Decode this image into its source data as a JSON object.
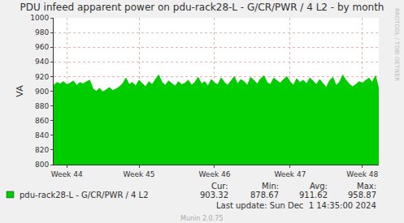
{
  "chart_data": {
    "type": "area",
    "title": "PDU infeed apparent power on pdu-rack28-L - G/CR/PWR / 4 L2 - by month",
    "y_label": "VA",
    "categories": [
      null,
      null,
      null,
      null,
      "Week 44",
      null,
      null,
      null,
      null,
      null,
      null,
      null,
      null,
      null,
      null,
      null,
      null,
      null,
      null,
      null,
      null,
      null,
      null,
      null,
      null,
      null,
      "Week 45",
      null,
      null,
      null,
      null,
      null,
      null,
      null,
      null,
      null,
      null,
      null,
      null,
      null,
      null,
      null,
      null,
      null,
      null,
      null,
      null,
      null,
      null,
      "Week 46",
      null,
      null,
      null,
      null,
      null,
      null,
      null,
      null,
      null,
      null,
      null,
      null,
      null,
      null,
      null,
      null,
      null,
      null,
      null,
      null,
      null,
      null,
      "Week 47",
      null,
      null,
      null,
      null,
      null,
      null,
      null,
      null,
      null,
      null,
      null,
      null,
      null,
      null,
      null,
      null,
      null,
      null,
      null,
      null,
      null,
      "Week 48",
      null,
      null,
      null,
      null,
      null
    ],
    "series": [
      {
        "name": "pdu-rack28-L - G/CR/PWR / 4 L2",
        "color": "#00cc00",
        "values": [
          908,
          912,
          910,
          913,
          909,
          911,
          914,
          908,
          912,
          910,
          913,
          915,
          903,
          900,
          904,
          899,
          902,
          905,
          901,
          903,
          906,
          910,
          918,
          909,
          912,
          907,
          915,
          911,
          906,
          913,
          909,
          916,
          922,
          912,
          908,
          914,
          910,
          907,
          913,
          909,
          911,
          915,
          908,
          912,
          919,
          910,
          913,
          907,
          916,
          911,
          909,
          918,
          912,
          908,
          914,
          920,
          910,
          916,
          913,
          908,
          919,
          914,
          910,
          917,
          921,
          912,
          909,
          918,
          914,
          911,
          916,
          920,
          913,
          908,
          917,
          912,
          915,
          910,
          918,
          913,
          909,
          916,
          911,
          905,
          914,
          919,
          908,
          912,
          922,
          915,
          910,
          906,
          909,
          913,
          911,
          915,
          918,
          912,
          921,
          903
        ]
      }
    ],
    "ylim": [
      800,
      1000
    ],
    "yticks": [
      800,
      820,
      840,
      860,
      880,
      900,
      920,
      940,
      960,
      980,
      1000
    ],
    "grid": true,
    "stats": [
      {
        "label": "Cur:",
        "value": "903.32"
      },
      {
        "label": "Min:",
        "value": "878.67"
      },
      {
        "label": "Avg:",
        "value": "911.62"
      },
      {
        "label": "Max:",
        "value": "958.87"
      }
    ],
    "last_update": "Last update: Sun Dec  1 14:35:00 2024",
    "footer": "Munin 2.0.75",
    "watermark": "RRDTOOL / TOBI OETIKER"
  }
}
